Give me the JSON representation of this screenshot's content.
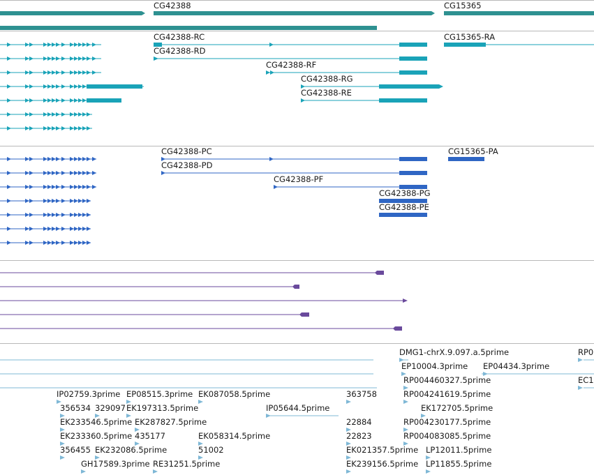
{
  "colors": {
    "gene": "#2e9191",
    "transcript_rna": "#1aa3b8",
    "transcript_protein": "#2f66c4",
    "track4": "#6a4a9c",
    "est": "#7fb8d6",
    "divider": "#b8b8b8"
  },
  "genes": [
    {
      "id": "gene-cg42388",
      "label": "CG42388"
    },
    {
      "id": "gene-cg15365",
      "label": "CG15365"
    }
  ],
  "rna_labels": [
    {
      "id": "rc",
      "label": "CG42388-RC"
    },
    {
      "id": "rd",
      "label": "CG42388-RD"
    },
    {
      "id": "rf",
      "label": "CG42388-RF"
    },
    {
      "id": "rg",
      "label": "CG42388-RG"
    },
    {
      "id": "re",
      "label": "CG42388-RE"
    },
    {
      "id": "ra",
      "label": "CG15365-RA"
    }
  ],
  "protein_labels": [
    {
      "id": "pc",
      "label": "CG42388-PC"
    },
    {
      "id": "pd",
      "label": "CG42388-PD"
    },
    {
      "id": "pf",
      "label": "CG42388-PF"
    },
    {
      "id": "pg",
      "label": "CG42388-PG"
    },
    {
      "id": "pe",
      "label": "CG42388-PE"
    },
    {
      "id": "pa",
      "label": "CG15365-PA"
    }
  ],
  "est_labels": [
    "DMG1-chrX.9.097.a.5prime",
    "RP0",
    "EP10004.3prime",
    "EP04434.3prime",
    "RP004460327.5prime",
    "EC1",
    "IP02759.3prime",
    "EP08515.3prime",
    "EK087058.5prime",
    "363758",
    "RP004241619.5prime",
    "356534",
    "329097",
    "EK197313.5prime",
    "IP05644.5prime",
    "EK172705.5prime",
    "EK233546.5prime",
    "EK287827.5prime",
    "22884",
    "RP004230177.5prime",
    "EK233360.5prime",
    "435177",
    "EK058314.5prime",
    "22823",
    "RP004083085.5prime",
    "356455",
    "EK232086.5prime",
    "51002",
    "EK021357.5prime",
    "LP12011.5prime",
    "GH17589.3prime",
    "RE31251.5prime",
    "EK239156.5prime",
    "LP11855.5prime"
  ]
}
